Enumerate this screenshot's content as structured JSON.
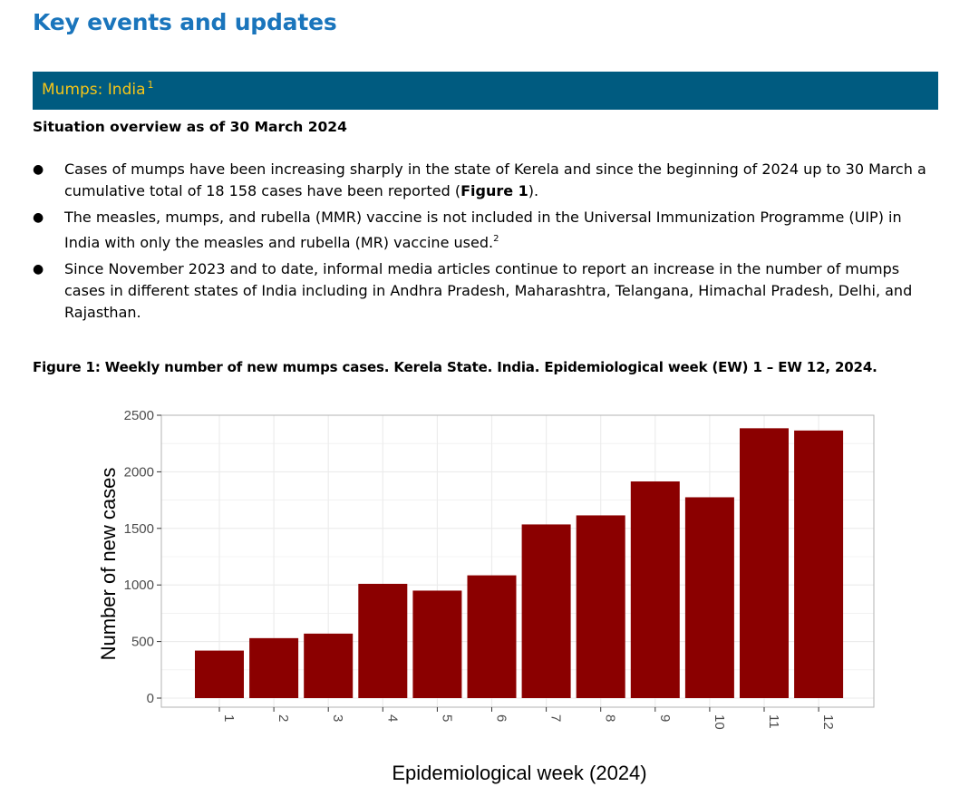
{
  "header": {
    "title": "Key events and updates"
  },
  "section": {
    "label": "Mumps: India",
    "footnote": "1"
  },
  "overview": {
    "heading": "Situation overview as of 30 March 2024"
  },
  "bullets": [
    {
      "parts": [
        "Cases of mumps have been increasing sharply in the state of Kerela and since the beginning of 2024 up to 30 March a cumulative total of 18 158 cases have been reported (",
        "Figure 1",
        ")."
      ]
    },
    {
      "parts": [
        "The measles, mumps, and rubella (MMR) vaccine is not included in the Universal Immunization Programme (UIP) in India with only the measles and rubella (MR) vaccine used.",
        "2"
      ]
    },
    {
      "parts": [
        "Since November 2023 and to date, informal media articles continue to report an increase in the number of mumps cases in different states of India including in Andhra Pradesh, Maharashtra, Telangana, Himachal Pradesh, Delhi, and Rajasthan."
      ]
    }
  ],
  "figure": {
    "caption": "Figure 1: Weekly number of new mumps cases. Kerela State. India. Epidemiological week (EW) 1 – EW 12, 2024."
  },
  "chart_data": {
    "type": "bar",
    "categories": [
      "1",
      "2",
      "3",
      "4",
      "5",
      "6",
      "7",
      "8",
      "9",
      "10",
      "11",
      "12"
    ],
    "values": [
      420,
      530,
      570,
      1010,
      950,
      1085,
      1535,
      1615,
      1915,
      1775,
      2385,
      2365
    ],
    "xlabel": "Epidemiological week (2024)",
    "ylabel": "Number of new cases",
    "ylim": [
      0,
      2500
    ],
    "yticks": [
      0,
      500,
      1000,
      1500,
      2000,
      2500
    ],
    "grid": true,
    "bar_color": "#8b0000",
    "grid_color": "#ebebeb",
    "panel_border_color": "#b3b3b3"
  }
}
